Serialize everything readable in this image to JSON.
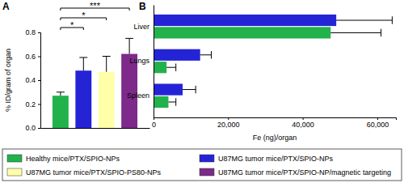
{
  "chart_data": [
    {
      "type": "bar",
      "title": "A",
      "ylabel": "% ID/gram of organ",
      "categories": [
        null
      ],
      "ylim": [
        0,
        0.8
      ],
      "yticks": [
        {
          "value": 0,
          "label": "0.0"
        },
        {
          "value": 0.2,
          "label": "0.2"
        },
        {
          "value": 0.4,
          "label": "0.4"
        },
        {
          "value": 0.6,
          "label": "0.6"
        },
        {
          "value": 0.8,
          "label": "0.8"
        }
      ],
      "legend": "bottom",
      "series": [
        {
          "name": "Healthy mice/PTX/SPIO-NPs",
          "color": "#22b24c",
          "values": [
            0.27
          ],
          "errors": [
            0.03
          ]
        },
        {
          "name": "U87MG tumor mice/PTX/SPIO-NPs",
          "color": "#2424d6",
          "values": [
            0.48
          ],
          "errors": [
            0.11
          ]
        },
        {
          "name": "U87MG tumor mice/PTX/SPIO-PS80-NPs",
          "color": "#ffffaa",
          "values": [
            0.47
          ],
          "errors": [
            0.13
          ]
        },
        {
          "name": "U87MG tumor mice/PTX/SPIO-NP/magnetic targeting",
          "color": "#7d2a8a",
          "values": [
            0.62
          ],
          "errors": [
            0.13
          ]
        }
      ],
      "annotations": [
        {
          "text": "*",
          "between": [
            0,
            1
          ]
        },
        {
          "text": "*",
          "between": [
            0,
            2
          ]
        },
        {
          "text": "***",
          "between": [
            0,
            3
          ]
        }
      ]
    },
    {
      "type": "bar",
      "orientation": "horizontal",
      "title": "B",
      "xlabel": "Fe (ng)/organ",
      "categories": [
        "Liver",
        "Lungs",
        "Spleen"
      ],
      "xlim": [
        0,
        65000
      ],
      "xticks": [
        0,
        {
          "value": 20000,
          "label": "20,000"
        },
        {
          "value": 40000,
          "label": "40,000"
        },
        {
          "value": 60000,
          "label": "60,000"
        }
      ],
      "series": [
        {
          "color": "#2424d6",
          "values": [
            49000,
            12500,
            7800
          ],
          "errors": [
            15000,
            3000,
            3500
          ]
        },
        {
          "color": "#22b24c",
          "values": [
            47500,
            3500,
            4000
          ],
          "errors": [
            13500,
            2500,
            2000
          ]
        }
      ]
    }
  ]
}
